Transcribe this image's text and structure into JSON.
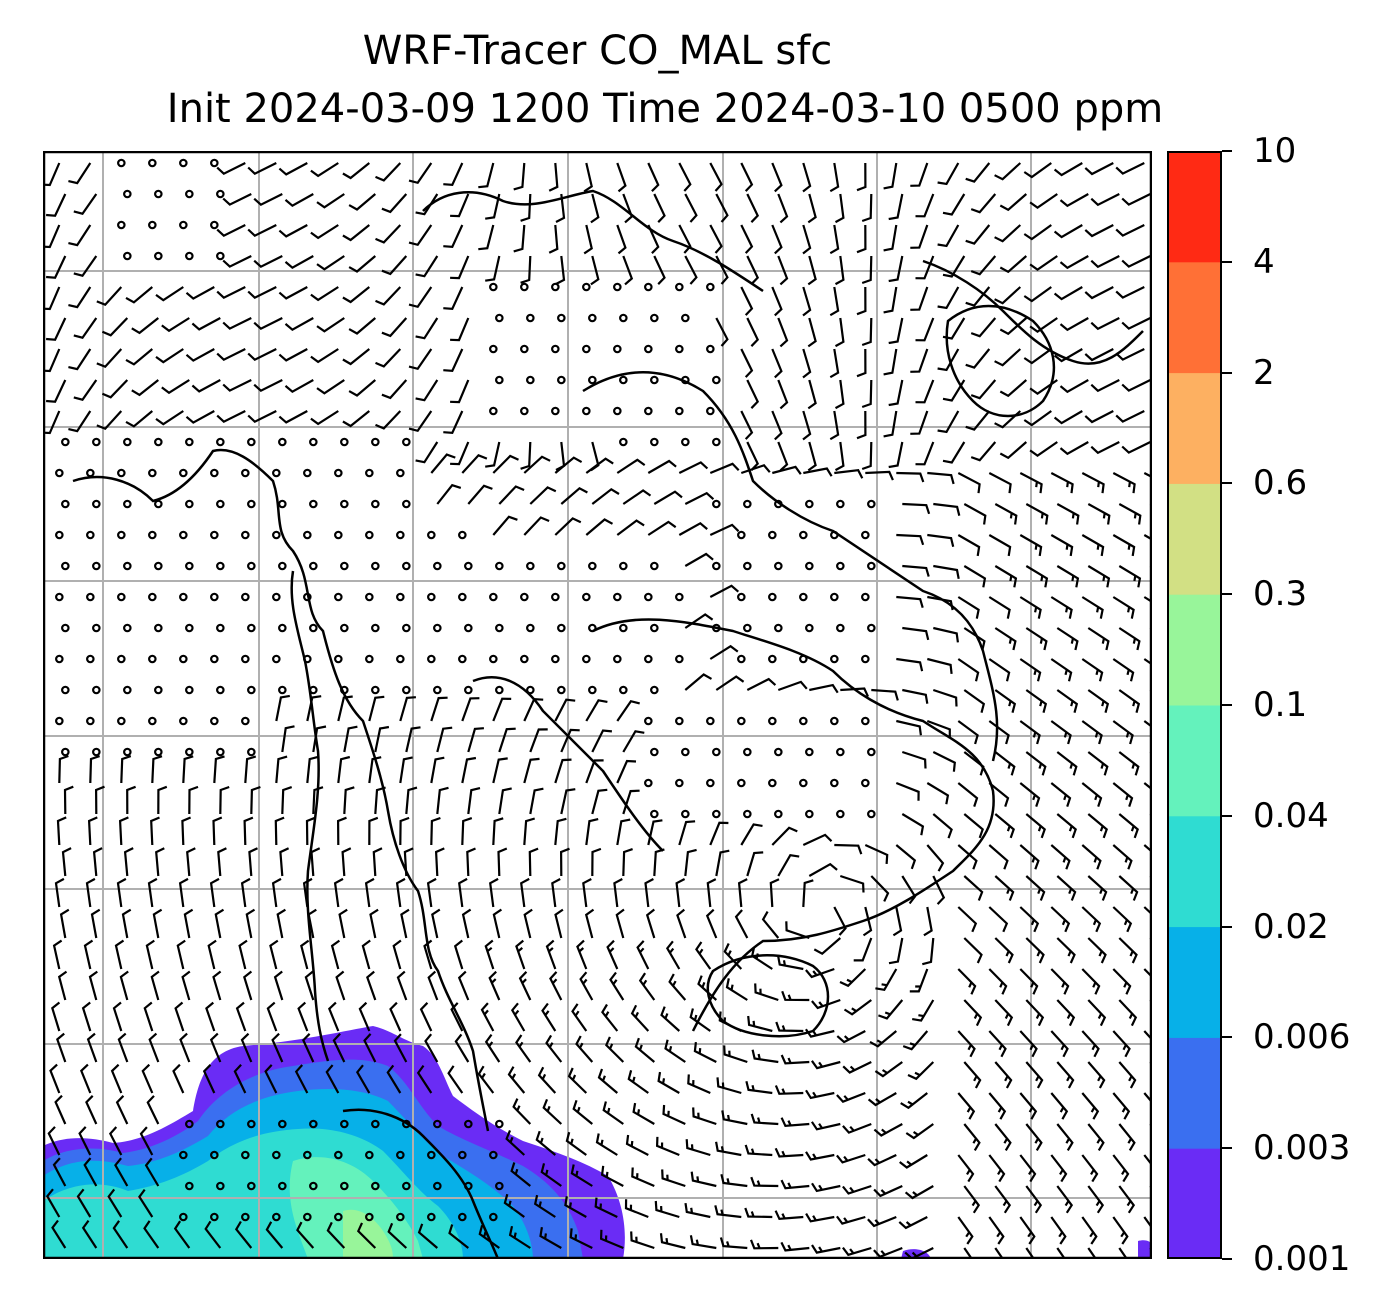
{
  "title": {
    "line1": "WRF-Tracer CO_MAL sfc",
    "line2": "Init 2024-03-09 1200 Time 2024-03-10 0500 ppm"
  },
  "colorbar": {
    "levels": [
      "0.001",
      "0.003",
      "0.006",
      "0.02",
      "0.04",
      "0.1",
      "0.3",
      "0.6",
      "2",
      "4",
      "10"
    ],
    "colors": [
      "#6a2cf5",
      "#3a6ff0",
      "#07b0e8",
      "#2fdcd2",
      "#64f2bc",
      "#98f59a",
      "#d2e084",
      "#fdb061",
      "#ff7036",
      "#ff2a14"
    ]
  },
  "map": {
    "gridlines": "on",
    "grid_color": "#b0b0b0",
    "coastline_color": "#000000",
    "wind_barbs": "on"
  }
}
